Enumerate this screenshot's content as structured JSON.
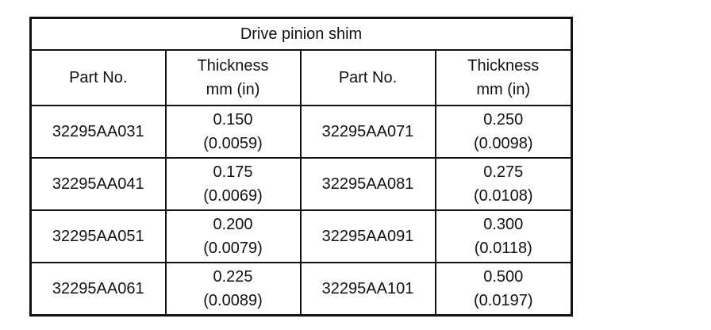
{
  "table": {
    "title": "Drive pinion shim",
    "header": [
      [
        "Part No."
      ],
      [
        "Thickness",
        "mm (in)"
      ],
      [
        "Part No."
      ],
      [
        "Thickness",
        "mm (in)"
      ]
    ],
    "rows": [
      [
        [
          "32295AA031"
        ],
        [
          "0.150",
          "(0.0059)"
        ],
        [
          "32295AA071"
        ],
        [
          "0.250",
          "(0.0098)"
        ]
      ],
      [
        [
          "32295AA041"
        ],
        [
          "0.175",
          "(0.0069)"
        ],
        [
          "32295AA081"
        ],
        [
          "0.275",
          "(0.0108)"
        ]
      ],
      [
        [
          "32295AA051"
        ],
        [
          "0.200",
          "(0.0079)"
        ],
        [
          "32295AA091"
        ],
        [
          "0.300",
          "(0.0118)"
        ]
      ],
      [
        [
          "32295AA061"
        ],
        [
          "0.225",
          "(0.0089)"
        ],
        [
          "32295AA101"
        ],
        [
          "0.500",
          "(0.0197)"
        ]
      ]
    ]
  }
}
